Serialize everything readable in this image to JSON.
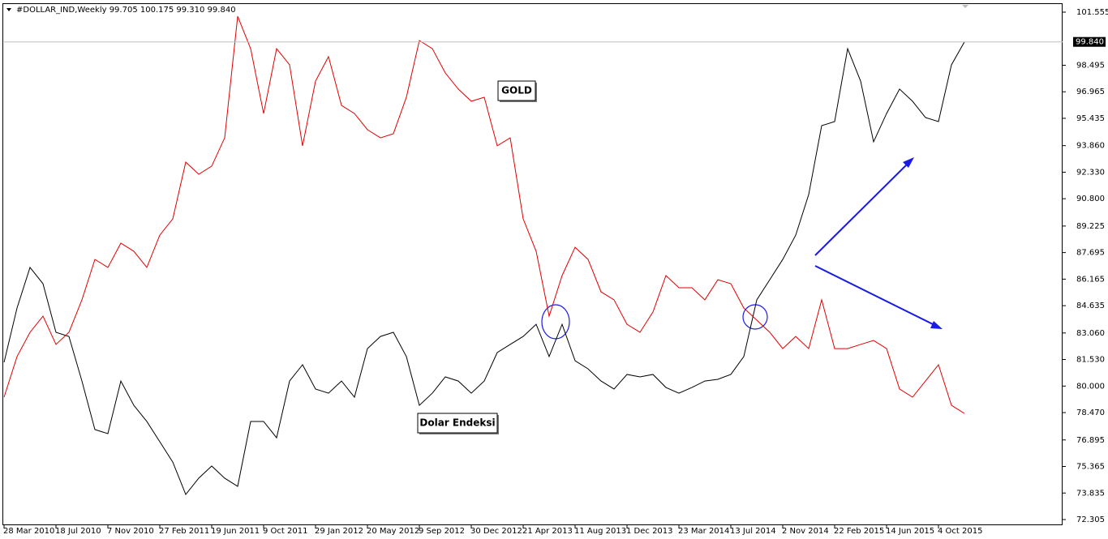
{
  "chart_data": {
    "type": "line",
    "title": "#DOLLAR_IND,Weekly  99.705 100.175 99.310 99.840",
    "last_price_label": "99.840",
    "categories": [
      "28 Mar 2010",
      null,
      null,
      null,
      "18 Jul 2010",
      null,
      null,
      null,
      "7 Nov 2010",
      null,
      null,
      null,
      "27 Feb 2011",
      null,
      null,
      null,
      "19 Jun 2011",
      null,
      null,
      null,
      "9 Oct 2011",
      null,
      null,
      null,
      "29 Jan 2012",
      null,
      null,
      null,
      "20 May 2012",
      null,
      null,
      null,
      "9 Sep 2012",
      null,
      null,
      null,
      "30 Dec 2012",
      null,
      null,
      null,
      "21 Apr 2013",
      null,
      null,
      null,
      "11 Aug 2013",
      null,
      null,
      null,
      "1 Dec 2013",
      null,
      null,
      null,
      "23 Mar 2014",
      null,
      null,
      null,
      "13 Jul 2014",
      null,
      null,
      null,
      "2 Nov 2014",
      null,
      null,
      null,
      "22 Feb 2015",
      null,
      null,
      null,
      "14 Jun 2015",
      null,
      null,
      null,
      "4 Oct 2015",
      null,
      null
    ],
    "series": [
      {
        "name": "Dolar Endeksi",
        "color": "#000000",
        "values": [
          81.37,
          84.5,
          86.84,
          85.9,
          83.1,
          82.86,
          80.29,
          77.49,
          77.26,
          80.29,
          78.89,
          77.96,
          76.79,
          75.62,
          73.75,
          74.69,
          75.39,
          74.69,
          74.22,
          77.96,
          77.96,
          77.02,
          80.29,
          81.23,
          79.83,
          79.59,
          80.29,
          79.36,
          82.16,
          82.86,
          83.1,
          81.7,
          78.89,
          79.59,
          80.53,
          80.29,
          79.59,
          80.29,
          81.93,
          82.4,
          82.86,
          83.56,
          81.7,
          83.56,
          81.46,
          80.99,
          80.29,
          79.83,
          80.67,
          80.53,
          80.67,
          79.92,
          79.59,
          79.92,
          80.29,
          80.39,
          80.67,
          81.7,
          84.97,
          86.13,
          87.3,
          88.7,
          91.04,
          95.01,
          95.25,
          99.45,
          97.58,
          94.08,
          95.71,
          97.12,
          96.42,
          95.48,
          95.25,
          98.52,
          99.84
        ]
      },
      {
        "name": "GOLD",
        "color": "#e00000",
        "values": [
          79.36,
          81.7,
          83.1,
          84.03,
          82.4,
          83.1,
          84.97,
          87.3,
          86.84,
          88.24,
          87.77,
          86.84,
          88.7,
          89.64,
          92.91,
          92.21,
          92.68,
          94.31,
          101.32,
          99.45,
          95.71,
          99.45,
          98.52,
          93.85,
          97.58,
          98.99,
          96.18,
          95.71,
          94.78,
          94.31,
          94.55,
          96.65,
          99.92,
          99.45,
          98.05,
          97.12,
          96.42,
          96.65,
          93.85,
          94.31,
          89.64,
          87.77,
          84.03,
          86.37,
          88.0,
          87.3,
          85.43,
          84.97,
          83.56,
          83.1,
          84.27,
          86.37,
          85.67,
          85.67,
          84.97,
          86.13,
          85.9,
          84.5,
          83.8,
          83.1,
          82.16,
          82.86,
          82.16,
          84.97,
          82.16,
          82.16,
          82.4,
          82.63,
          82.16,
          79.83,
          79.36,
          80.29,
          81.23,
          78.89,
          78.42
        ]
      }
    ],
    "ylim": [
      71.978,
      102.022
    ],
    "yticks": [
      101.555,
      98.495,
      96.965,
      95.435,
      {
        "value": 93.86,
        "label": "93.860"
      },
      {
        "value": 92.33,
        "label": "92.330"
      },
      {
        "value": 90.8,
        "label": "90.800"
      },
      89.225,
      87.695,
      86.165,
      84.635,
      {
        "value": 83.06,
        "label": "83.060"
      },
      {
        "value": 81.53,
        "label": "81.530"
      },
      {
        "value": 80,
        "label": "80.000"
      },
      {
        "value": 78.47,
        "label": "78.470"
      },
      76.895,
      75.365,
      73.835,
      72.305
    ],
    "grid": false
  }
}
